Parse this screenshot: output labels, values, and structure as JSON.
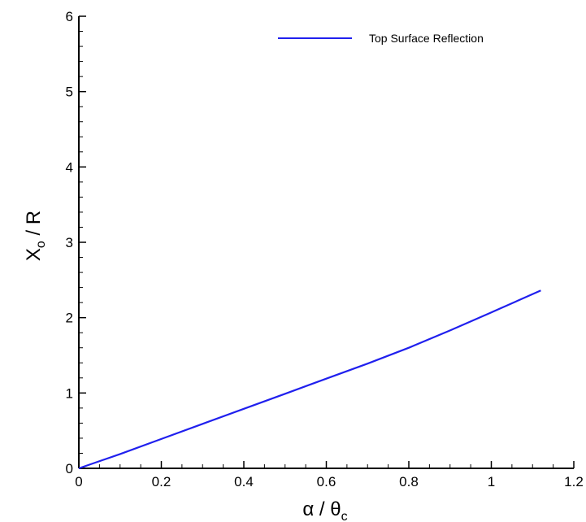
{
  "chart_data": {
    "type": "line",
    "xlabel": "α / θ",
    "xlabel_subscript": "c",
    "ylabel": "X",
    "ylabel_subscript": "o",
    "ylabel_suffix": " / R",
    "xlim": [
      0,
      1.2
    ],
    "ylim": [
      0,
      6
    ],
    "x_ticks": [
      0,
      0.2,
      0.4,
      0.6,
      0.8,
      1,
      1.2
    ],
    "x_tick_labels": [
      "0",
      "0.2",
      "0.4",
      "0.6",
      "0.8",
      "1",
      "1.2"
    ],
    "y_ticks": [
      0,
      1,
      2,
      3,
      4,
      5,
      6
    ],
    "y_tick_labels": [
      "0",
      "1",
      "2",
      "3",
      "4",
      "5",
      "6"
    ],
    "grid": false,
    "legend_position": "top-right",
    "series": [
      {
        "name": "Top Surface Reflection",
        "color": "#2020ee",
        "x": [
          0,
          0.1,
          0.2,
          0.3,
          0.4,
          0.5,
          0.6,
          0.7,
          0.8,
          0.9,
          1.0,
          1.12
        ],
        "y": [
          0,
          0.19,
          0.39,
          0.59,
          0.79,
          0.99,
          1.19,
          1.39,
          1.6,
          1.83,
          2.07,
          2.36
        ]
      }
    ]
  }
}
